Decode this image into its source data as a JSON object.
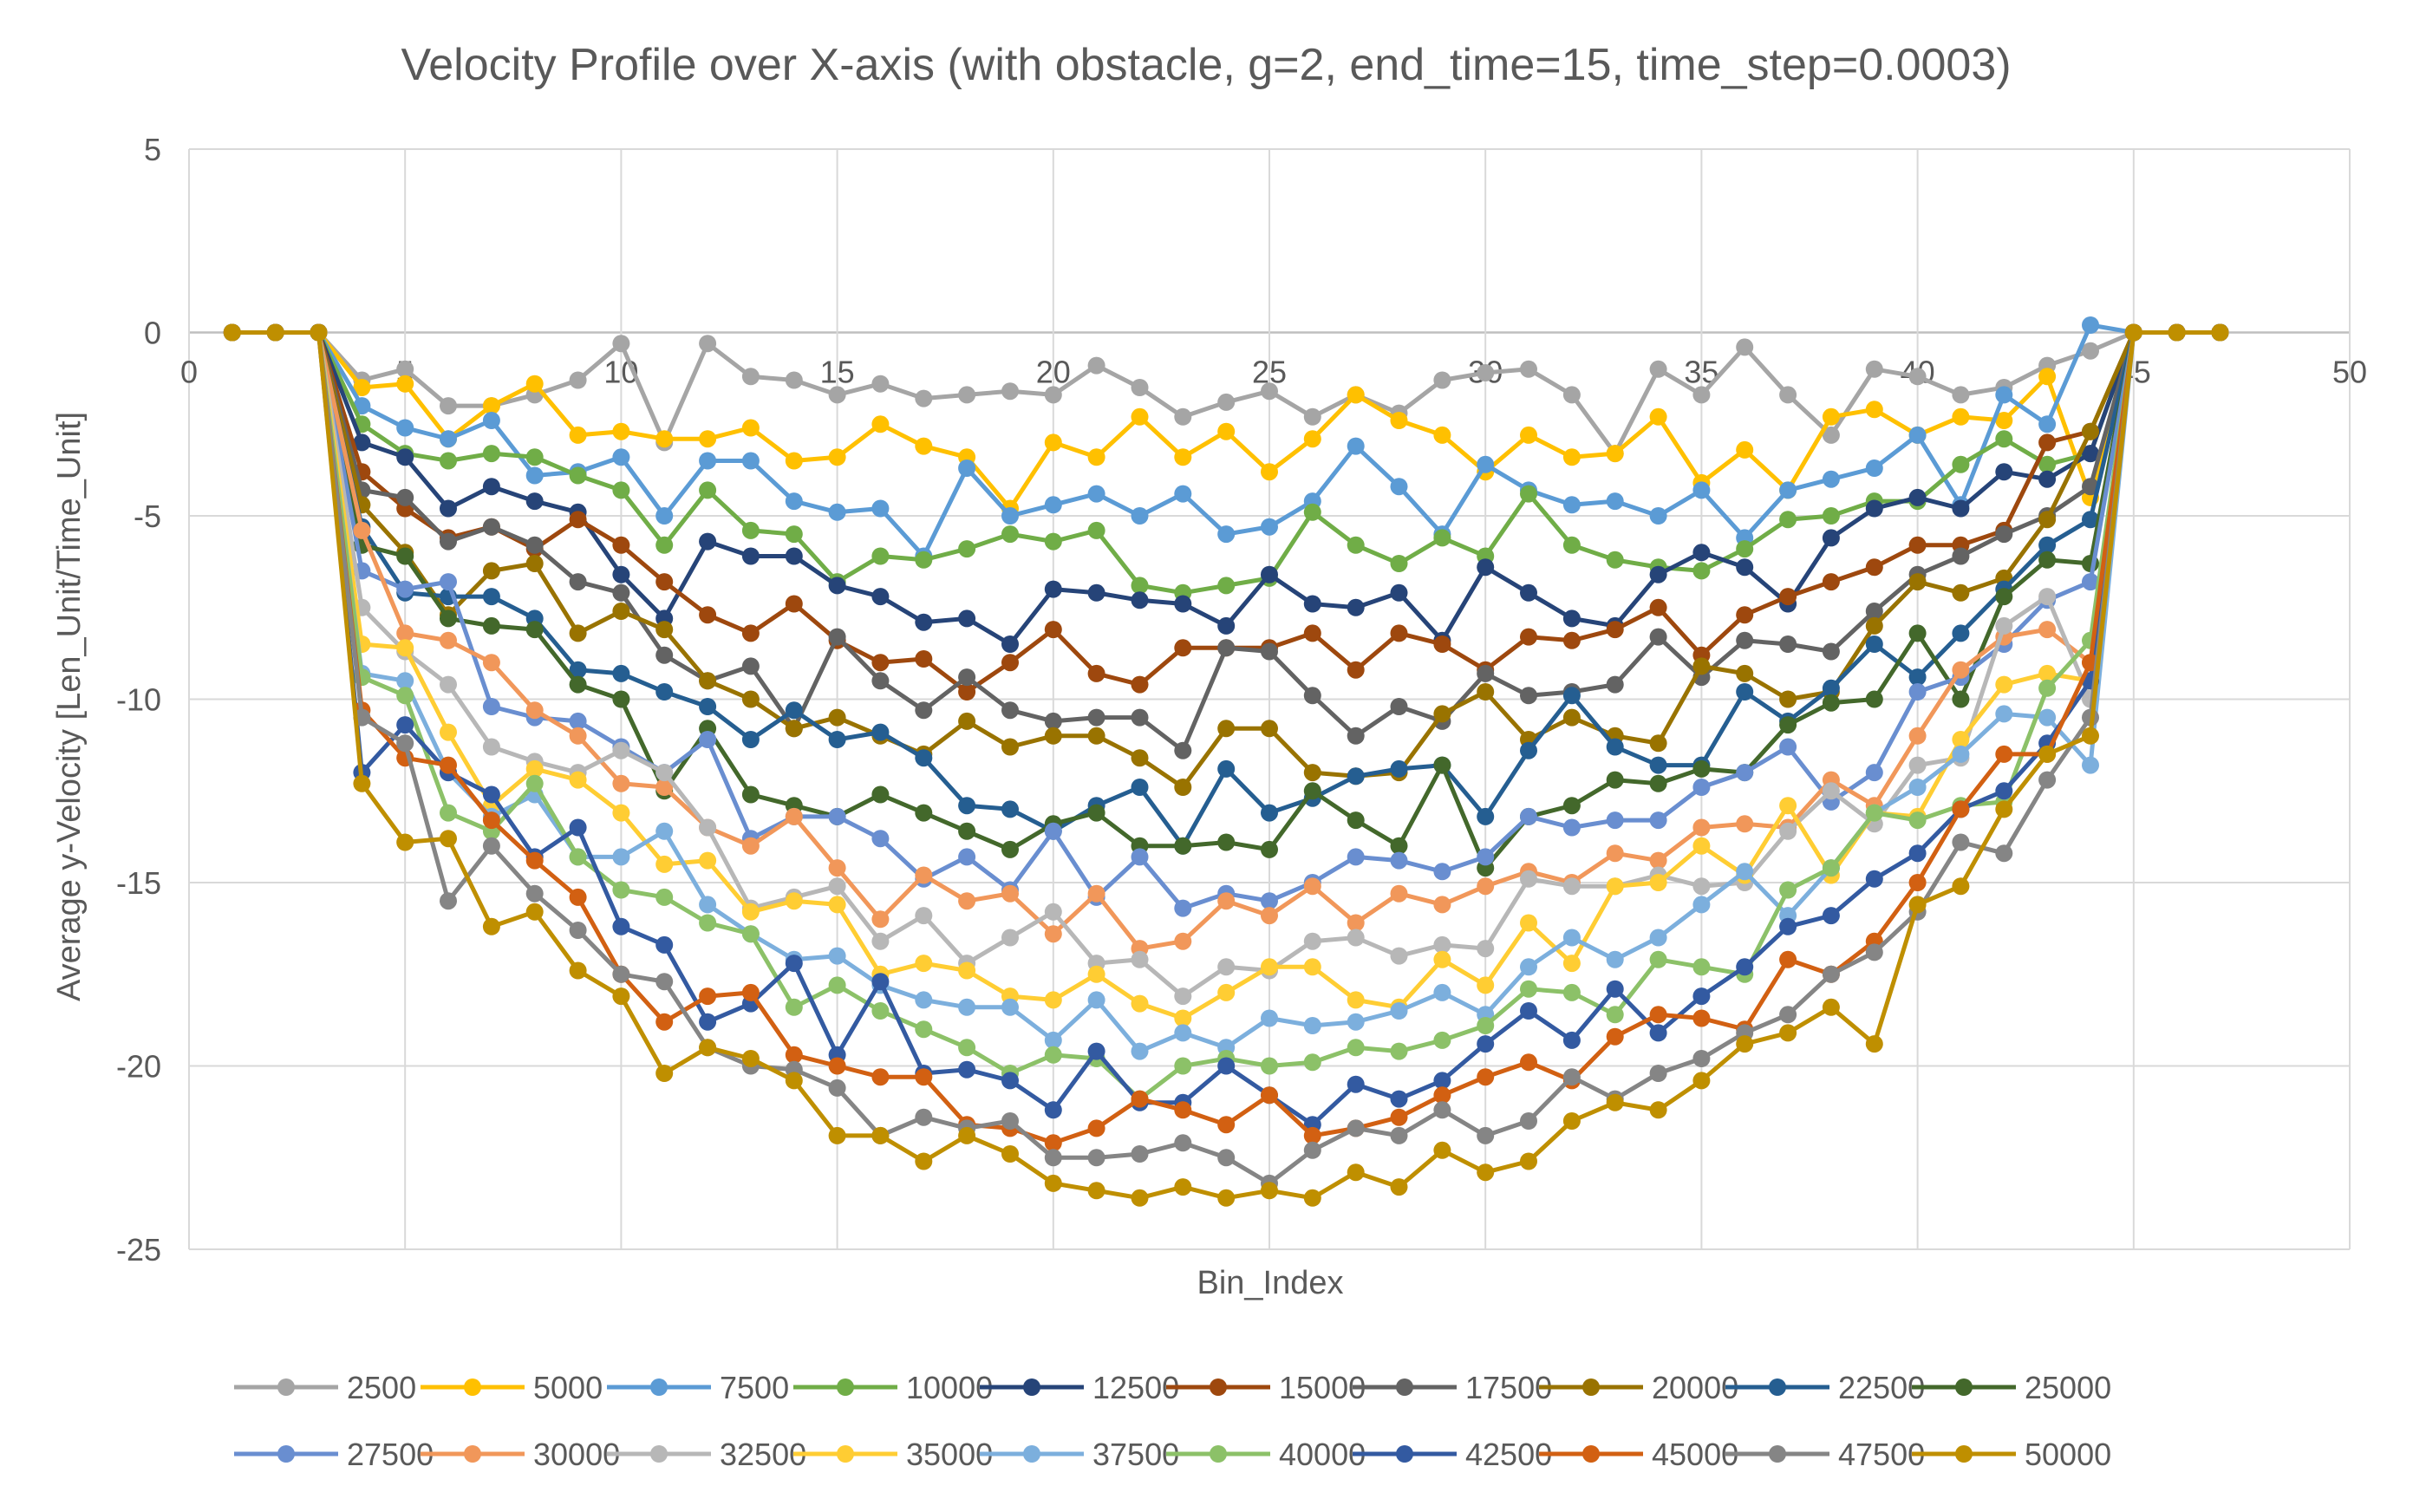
{
  "chart_data": {
    "type": "line",
    "title": "Velocity Profile over X-axis (with obstacle, g=2, end_time=15, time_step=0.0003)",
    "xlabel": "Bin_Index",
    "ylabel": "Average y-Velocity [Len_Unit/Time_Unit]",
    "xlim": [
      0,
      50
    ],
    "ylim": [
      -25,
      5
    ],
    "xticks": [
      "0",
      "5",
      "10",
      "15",
      "20",
      "25",
      "30",
      "35",
      "40",
      "45",
      "50"
    ],
    "yticks": [
      "5",
      "0",
      "-5",
      "-10",
      "-15",
      "-20",
      "-25"
    ],
    "grid": true,
    "legend_position": "bottom",
    "x": [
      1,
      2,
      3,
      4,
      5,
      6,
      7,
      8,
      9,
      10,
      11,
      12,
      13,
      14,
      15,
      16,
      17,
      18,
      19,
      20,
      21,
      22,
      23,
      24,
      25,
      26,
      27,
      28,
      29,
      30,
      31,
      32,
      33,
      34,
      35,
      36,
      37,
      38,
      39,
      40,
      41,
      42,
      43,
      44,
      45,
      46,
      47
    ],
    "series": [
      {
        "name": "2500",
        "color": "#A5A5A5",
        "values": [
          0,
          0,
          0,
          -1.3,
          -1.0,
          -2.0,
          -2.0,
          -1.7,
          -1.3,
          -0.3,
          -3.0,
          -0.3,
          -1.2,
          -1.3,
          -1.7,
          -1.4,
          -1.8,
          -1.7,
          -1.6,
          -1.7,
          -0.9,
          -1.5,
          -2.3,
          -1.9,
          -1.6,
          -2.3,
          -1.7,
          -2.2,
          -1.3,
          -1.1,
          -1.0,
          -1.7,
          -3.3,
          -1.0,
          -1.7,
          -0.4,
          -1.7,
          -2.8,
          -1.0,
          -1.2,
          -1.7,
          -1.5,
          -0.9,
          -0.5,
          0,
          0,
          0
        ]
      },
      {
        "name": "5000",
        "color": "#FFC000",
        "values": [
          0,
          0,
          0,
          -1.5,
          -1.4,
          -2.9,
          -2.0,
          -1.4,
          -2.8,
          -2.7,
          -2.9,
          -2.9,
          -2.6,
          -3.5,
          -3.4,
          -2.5,
          -3.1,
          -3.4,
          -4.8,
          -3.0,
          -3.4,
          -2.3,
          -3.4,
          -2.7,
          -3.8,
          -2.9,
          -1.7,
          -2.4,
          -2.8,
          -3.8,
          -2.8,
          -3.4,
          -3.3,
          -2.3,
          -4.1,
          -3.2,
          -4.3,
          -2.3,
          -2.1,
          -2.8,
          -2.3,
          -2.4,
          -1.2,
          -4.5,
          0,
          0,
          0
        ]
      },
      {
        "name": "7500",
        "color": "#5B9BD5",
        "values": [
          0,
          0,
          0,
          -2.0,
          -2.6,
          -2.9,
          -2.4,
          -3.9,
          -3.8,
          -3.4,
          -5.0,
          -3.5,
          -3.5,
          -4.6,
          -4.9,
          -4.8,
          -6.1,
          -3.7,
          -5.0,
          -4.7,
          -4.4,
          -5.0,
          -4.4,
          -5.5,
          -5.3,
          -4.6,
          -3.1,
          -4.2,
          -5.5,
          -3.6,
          -4.3,
          -4.7,
          -4.6,
          -5.0,
          -4.3,
          -5.6,
          -4.3,
          -4.0,
          -3.7,
          -2.8,
          -4.7,
          -1.7,
          -2.5,
          0.2,
          0,
          0,
          0
        ]
      },
      {
        "name": "10000",
        "color": "#70AD47",
        "values": [
          0,
          0,
          0,
          -2.5,
          -3.3,
          -3.5,
          -3.3,
          -3.4,
          -3.9,
          -4.3,
          -5.8,
          -4.3,
          -5.4,
          -5.5,
          -6.8,
          -6.1,
          -6.2,
          -5.9,
          -5.5,
          -5.7,
          -5.4,
          -6.9,
          -7.1,
          -6.9,
          -6.7,
          -4.9,
          -5.8,
          -6.3,
          -5.6,
          -6.1,
          -4.4,
          -5.8,
          -6.2,
          -6.4,
          -6.5,
          -5.9,
          -5.1,
          -5.0,
          -4.6,
          -4.6,
          -3.6,
          -2.9,
          -3.6,
          -3.3,
          0,
          0,
          0
        ]
      },
      {
        "name": "12500",
        "color": "#264478",
        "values": [
          0,
          0,
          0,
          -3.0,
          -3.4,
          -4.8,
          -4.2,
          -4.6,
          -4.9,
          -6.6,
          -7.8,
          -5.7,
          -6.1,
          -6.1,
          -6.9,
          -7.2,
          -7.9,
          -7.8,
          -8.5,
          -7.0,
          -7.1,
          -7.3,
          -7.4,
          -8.0,
          -6.6,
          -7.4,
          -7.5,
          -7.1,
          -8.4,
          -6.4,
          -7.1,
          -7.8,
          -8.0,
          -6.6,
          -6.0,
          -6.4,
          -7.4,
          -5.6,
          -4.8,
          -4.5,
          -4.8,
          -3.8,
          -4.0,
          -3.3,
          0,
          0,
          0
        ]
      },
      {
        "name": "15000",
        "color": "#9E480E",
        "values": [
          0,
          0,
          0,
          -3.8,
          -4.8,
          -5.6,
          -5.3,
          -5.9,
          -5.1,
          -5.8,
          -6.8,
          -7.7,
          -8.2,
          -7.4,
          -8.4,
          -9.0,
          -8.9,
          -9.8,
          -9.0,
          -8.1,
          -9.3,
          -9.6,
          -8.6,
          -8.6,
          -8.6,
          -8.2,
          -9.2,
          -8.2,
          -8.5,
          -9.2,
          -8.3,
          -8.4,
          -8.1,
          -7.5,
          -8.8,
          -7.7,
          -7.2,
          -6.8,
          -6.4,
          -5.8,
          -5.8,
          -5.4,
          -3.0,
          -2.7,
          0,
          0,
          0
        ]
      },
      {
        "name": "17500",
        "color": "#636363",
        "values": [
          0,
          0,
          0,
          -4.3,
          -4.5,
          -5.7,
          -5.3,
          -5.8,
          -6.8,
          -7.1,
          -8.8,
          -9.5,
          -9.1,
          -10.8,
          -8.3,
          -9.5,
          -10.3,
          -9.4,
          -10.3,
          -10.6,
          -10.5,
          -10.5,
          -11.4,
          -8.6,
          -8.7,
          -9.9,
          -11.0,
          -10.2,
          -10.6,
          -9.3,
          -9.9,
          -9.8,
          -9.6,
          -8.3,
          -9.4,
          -8.4,
          -8.5,
          -8.7,
          -7.6,
          -6.6,
          -6.1,
          -5.5,
          -5.0,
          -4.2,
          0,
          0,
          0
        ]
      },
      {
        "name": "20000",
        "color": "#997300",
        "values": [
          0,
          0,
          0,
          -4.7,
          -6.0,
          -7.7,
          -6.5,
          -6.3,
          -8.2,
          -7.6,
          -8.1,
          -9.5,
          -10.0,
          -10.8,
          -10.5,
          -11.0,
          -11.5,
          -10.6,
          -11.3,
          -11.0,
          -11.0,
          -11.6,
          -12.4,
          -10.8,
          -10.8,
          -12.0,
          -12.1,
          -12.0,
          -10.4,
          -9.8,
          -11.1,
          -10.5,
          -11.0,
          -11.2,
          -9.1,
          -9.3,
          -10.0,
          -9.8,
          -8.0,
          -6.8,
          -7.1,
          -6.7,
          -5.1,
          -2.7,
          0,
          0,
          0
        ]
      },
      {
        "name": "22500",
        "color": "#255E91",
        "values": [
          0,
          0,
          0,
          -5.3,
          -7.1,
          -7.2,
          -7.2,
          -7.8,
          -9.2,
          -9.3,
          -9.8,
          -10.2,
          -11.1,
          -10.3,
          -11.1,
          -10.9,
          -11.6,
          -12.9,
          -13.0,
          -13.6,
          -12.9,
          -12.4,
          -14.0,
          -11.9,
          -13.1,
          -12.7,
          -12.1,
          -11.9,
          -11.8,
          -13.2,
          -11.4,
          -9.9,
          -11.3,
          -11.8,
          -11.8,
          -9.8,
          -10.6,
          -9.7,
          -8.5,
          -9.4,
          -8.2,
          -7.0,
          -5.8,
          -5.1,
          0,
          0,
          0
        ]
      },
      {
        "name": "25000",
        "color": "#43682B",
        "values": [
          0,
          0,
          0,
          -5.8,
          -6.1,
          -7.8,
          -8.0,
          -8.1,
          -9.6,
          -10.0,
          -12.5,
          -10.8,
          -12.6,
          -12.9,
          -13.2,
          -12.6,
          -13.1,
          -13.6,
          -14.1,
          -13.4,
          -13.1,
          -14.0,
          -14.0,
          -13.9,
          -14.1,
          -12.5,
          -13.3,
          -14.0,
          -11.8,
          -14.6,
          -13.2,
          -12.9,
          -12.2,
          -12.3,
          -11.9,
          -12.0,
          -10.7,
          -10.1,
          -10.0,
          -8.2,
          -10.0,
          -7.2,
          -6.2,
          -6.3,
          0,
          0,
          0
        ]
      },
      {
        "name": "27500",
        "color": "#698ED0",
        "values": [
          0,
          0,
          0,
          -6.5,
          -7.0,
          -6.8,
          -10.2,
          -10.5,
          -10.6,
          -11.3,
          -12.0,
          -11.1,
          -13.8,
          -13.2,
          -13.2,
          -13.8,
          -14.9,
          -14.3,
          -15.2,
          -13.6,
          -15.4,
          -14.3,
          -15.7,
          -15.3,
          -15.5,
          -15.0,
          -14.3,
          -14.4,
          -14.7,
          -14.3,
          -13.2,
          -13.5,
          -13.3,
          -13.3,
          -12.4,
          -12.0,
          -11.3,
          -12.8,
          -12.0,
          -9.8,
          -9.4,
          -8.5,
          -7.3,
          -6.8,
          0,
          0,
          0
        ]
      },
      {
        "name": "30000",
        "color": "#F1975A",
        "values": [
          0,
          0,
          0,
          -5.4,
          -8.2,
          -8.4,
          -9.0,
          -10.3,
          -11.0,
          -12.3,
          -12.4,
          -13.5,
          -14.0,
          -13.2,
          -14.6,
          -16.0,
          -14.8,
          -15.5,
          -15.3,
          -16.4,
          -15.3,
          -16.8,
          -16.6,
          -15.5,
          -15.9,
          -15.1,
          -16.1,
          -15.3,
          -15.6,
          -15.1,
          -14.7,
          -15.0,
          -14.2,
          -14.4,
          -13.5,
          -13.4,
          -13.5,
          -12.2,
          -12.9,
          -11.0,
          -9.2,
          -8.3,
          -8.1,
          -9.0,
          0,
          0,
          0
        ]
      },
      {
        "name": "32500",
        "color": "#B7B7B7",
        "values": [
          0,
          0,
          0,
          -7.5,
          -8.7,
          -9.6,
          -11.3,
          -11.7,
          -12.0,
          -11.4,
          -12.0,
          -13.5,
          -15.7,
          -15.4,
          -15.1,
          -16.6,
          -15.9,
          -17.2,
          -16.5,
          -15.8,
          -17.2,
          -17.1,
          -18.1,
          -17.3,
          -17.4,
          -16.6,
          -16.5,
          -17.0,
          -16.7,
          -16.8,
          -14.9,
          -15.1,
          -15.1,
          -14.8,
          -15.1,
          -15.0,
          -13.6,
          -12.5,
          -13.4,
          -11.8,
          -11.6,
          -8.0,
          -7.2,
          -10.0,
          0,
          0,
          0
        ]
      },
      {
        "name": "35000",
        "color": "#FFCD33",
        "values": [
          0,
          0,
          0,
          -8.5,
          -8.6,
          -10.9,
          -12.9,
          -11.9,
          -12.2,
          -13.1,
          -14.5,
          -14.4,
          -15.8,
          -15.5,
          -15.6,
          -17.5,
          -17.2,
          -17.4,
          -18.1,
          -18.2,
          -17.5,
          -18.3,
          -18.7,
          -18.0,
          -17.3,
          -17.3,
          -18.2,
          -18.4,
          -17.1,
          -17.8,
          -16.1,
          -17.2,
          -15.1,
          -15.0,
          -14.0,
          -14.8,
          -12.9,
          -14.8,
          -13.1,
          -13.2,
          -11.1,
          -9.6,
          -9.3,
          -9.5,
          0,
          0,
          0
        ]
      },
      {
        "name": "37500",
        "color": "#7CAFDD",
        "values": [
          0,
          0,
          0,
          -9.3,
          -9.5,
          -12.0,
          -13.2,
          -12.6,
          -14.3,
          -14.3,
          -13.6,
          -15.6,
          -16.4,
          -17.1,
          -17.0,
          -17.8,
          -18.2,
          -18.4,
          -18.4,
          -19.3,
          -18.2,
          -19.6,
          -19.1,
          -19.5,
          -18.7,
          -18.9,
          -18.8,
          -18.5,
          -18.0,
          -18.6,
          -17.3,
          -16.5,
          -17.1,
          -16.5,
          -15.6,
          -14.7,
          -15.9,
          -14.6,
          -13.1,
          -12.4,
          -11.5,
          -10.4,
          -10.5,
          -11.8,
          0,
          0,
          0
        ]
      },
      {
        "name": "40000",
        "color": "#8CC168",
        "values": [
          0,
          0,
          0,
          -9.4,
          -9.9,
          -13.1,
          -13.6,
          -12.3,
          -14.3,
          -15.2,
          -15.4,
          -16.1,
          -16.4,
          -18.4,
          -17.8,
          -18.5,
          -19.0,
          -19.5,
          -20.2,
          -19.7,
          -19.8,
          -20.9,
          -20.0,
          -19.8,
          -20.0,
          -19.9,
          -19.5,
          -19.6,
          -19.3,
          -18.9,
          -17.9,
          -18.0,
          -18.6,
          -17.1,
          -17.3,
          -17.5,
          -15.2,
          -14.6,
          -13.1,
          -13.3,
          -12.9,
          -12.8,
          -9.7,
          -8.4,
          0,
          0,
          0
        ]
      },
      {
        "name": "42500",
        "color": "#335AA1",
        "values": [
          0,
          0,
          0,
          -12.0,
          -10.7,
          -12.0,
          -12.6,
          -14.3,
          -13.5,
          -16.2,
          -16.7,
          -18.8,
          -18.3,
          -17.2,
          -19.7,
          -17.7,
          -20.2,
          -20.1,
          -20.4,
          -21.2,
          -19.6,
          -21.0,
          -21.0,
          -20.0,
          -20.8,
          -21.6,
          -20.5,
          -20.9,
          -20.4,
          -19.4,
          -18.5,
          -19.3,
          -17.9,
          -19.1,
          -18.1,
          -17.3,
          -16.2,
          -15.9,
          -14.9,
          -14.2,
          -13.0,
          -12.5,
          -11.2,
          -9.5,
          0,
          0,
          0
        ]
      },
      {
        "name": "45000",
        "color": "#D26012",
        "values": [
          0,
          0,
          0,
          -10.3,
          -11.6,
          -11.8,
          -13.3,
          -14.4,
          -15.4,
          -17.5,
          -18.8,
          -18.1,
          -18.0,
          -19.7,
          -20.0,
          -20.3,
          -20.3,
          -21.6,
          -21.7,
          -22.1,
          -21.7,
          -20.9,
          -21.2,
          -21.6,
          -20.8,
          -21.9,
          -21.7,
          -21.4,
          -20.8,
          -20.3,
          -19.9,
          -20.4,
          -19.2,
          -18.6,
          -18.7,
          -19.0,
          -17.1,
          -17.5,
          -16.6,
          -15.0,
          -13.0,
          -11.5,
          -11.5,
          -9.0,
          0,
          0,
          0
        ]
      },
      {
        "name": "47500",
        "color": "#858585",
        "values": [
          0,
          0,
          0,
          -10.5,
          -11.2,
          -15.5,
          -14.0,
          -15.3,
          -16.3,
          -17.5,
          -17.7,
          -19.5,
          -20.0,
          -20.1,
          -20.6,
          -21.9,
          -21.4,
          -21.7,
          -21.5,
          -22.5,
          -22.5,
          -22.4,
          -22.1,
          -22.5,
          -23.2,
          -22.3,
          -21.7,
          -21.9,
          -21.2,
          -21.9,
          -21.5,
          -20.3,
          -20.9,
          -20.2,
          -19.8,
          -19.1,
          -18.6,
          -17.5,
          -16.9,
          -15.8,
          -13.9,
          -14.2,
          -12.2,
          -10.5,
          0,
          0,
          0
        ]
      },
      {
        "name": "50000",
        "color": "#BF8F00",
        "values": [
          0,
          0,
          0,
          -12.3,
          -13.9,
          -13.8,
          -16.2,
          -15.8,
          -17.4,
          -18.1,
          -20.2,
          -19.5,
          -19.8,
          -20.4,
          -21.9,
          -21.9,
          -22.6,
          -21.9,
          -22.4,
          -23.2,
          -23.4,
          -23.6,
          -23.3,
          -23.6,
          -23.4,
          -23.6,
          -22.9,
          -23.3,
          -22.3,
          -22.9,
          -22.6,
          -21.5,
          -21.0,
          -21.2,
          -20.4,
          -19.4,
          -19.1,
          -18.4,
          -19.4,
          -15.6,
          -15.1,
          -13.0,
          -11.5,
          -11.0,
          0,
          0,
          0
        ]
      }
    ]
  }
}
